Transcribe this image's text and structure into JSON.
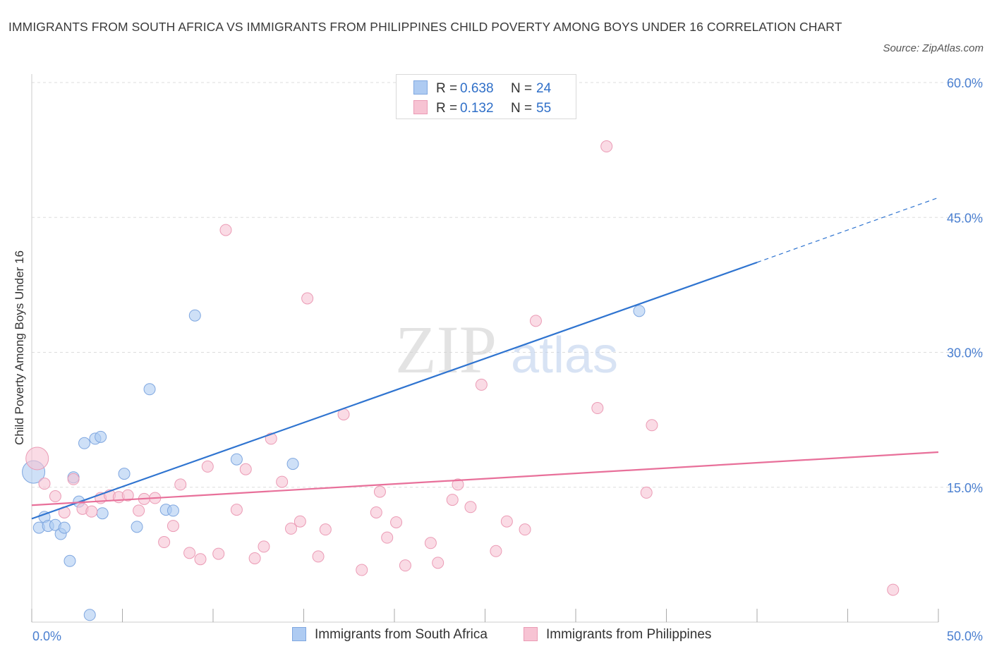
{
  "title": "IMMIGRANTS FROM SOUTH AFRICA VS IMMIGRANTS FROM PHILIPPINES CHILD POVERTY AMONG BOYS UNDER 16 CORRELATION CHART",
  "source": "Source: ZipAtlas.com",
  "watermark": {
    "zip": "ZIP",
    "atlas": "atlas"
  },
  "legend_top": [
    {
      "r_label": "R =",
      "r_value": "0.638",
      "n_label": "N =",
      "n_value": "24"
    },
    {
      "r_label": "R =",
      "r_value": "0.132",
      "n_label": "N =",
      "n_value": "55"
    }
  ],
  "legend_bottom": [
    "Immigrants from South Africa",
    "Immigrants from Philippines"
  ],
  "colors": {
    "blue_fill": "#aecbf2",
    "blue_stroke": "#7fa7e0",
    "blue_line": "#2f74d0",
    "pink_fill": "#f7c3d3",
    "pink_stroke": "#eb9bb5",
    "pink_line": "#e8709a",
    "tick_text": "#4a7fd0",
    "grid": "#dddddd"
  },
  "chart_data": {
    "type": "scatter",
    "title": "IMMIGRANTS FROM SOUTH AFRICA VS IMMIGRANTS FROM PHILIPPINES CHILD POVERTY AMONG BOYS UNDER 16 CORRELATION CHART",
    "xlabel": "",
    "ylabel": "Child Poverty Among Boys Under 16",
    "xlim": [
      0,
      50
    ],
    "ylim": [
      0,
      60
    ],
    "x_tick_labels": [
      "0.0%",
      "50.0%"
    ],
    "y_tick_values": [
      15,
      30,
      45,
      60
    ],
    "y_tick_labels": [
      "15.0%",
      "30.0%",
      "45.0%",
      "60.0%"
    ],
    "grid": true,
    "legend_position": "top-center",
    "series": [
      {
        "name": "Immigrants from South Africa",
        "color": "blue",
        "r": 0.638,
        "n": 24,
        "trend": {
          "x0": 0,
          "y0": 11.5,
          "x1": 40,
          "y1": 40.0,
          "dash_to_x": 50,
          "dash_to_y": 47.2
        },
        "points": [
          {
            "x": 0.1,
            "y": 16.7,
            "big": true
          },
          {
            "x": 0.4,
            "y": 10.5
          },
          {
            "x": 0.7,
            "y": 11.7
          },
          {
            "x": 0.9,
            "y": 10.7
          },
          {
            "x": 1.3,
            "y": 10.8
          },
          {
            "x": 1.6,
            "y": 9.8
          },
          {
            "x": 1.8,
            "y": 10.5
          },
          {
            "x": 2.1,
            "y": 6.8
          },
          {
            "x": 2.3,
            "y": 16.1
          },
          {
            "x": 2.6,
            "y": 13.4
          },
          {
            "x": 2.9,
            "y": 19.9
          },
          {
            "x": 3.5,
            "y": 20.4
          },
          {
            "x": 3.8,
            "y": 20.6
          },
          {
            "x": 3.9,
            "y": 12.1
          },
          {
            "x": 5.1,
            "y": 16.5
          },
          {
            "x": 5.8,
            "y": 10.6
          },
          {
            "x": 6.5,
            "y": 25.9
          },
          {
            "x": 7.4,
            "y": 12.5
          },
          {
            "x": 7.8,
            "y": 12.4
          },
          {
            "x": 9.0,
            "y": 34.1
          },
          {
            "x": 11.3,
            "y": 18.1
          },
          {
            "x": 14.4,
            "y": 17.6
          },
          {
            "x": 3.2,
            "y": 0.8
          },
          {
            "x": 33.5,
            "y": 34.6
          }
        ]
      },
      {
        "name": "Immigrants from Philippines",
        "color": "pink",
        "r": 0.132,
        "n": 55,
        "trend": {
          "x0": 0,
          "y0": 13.0,
          "x1": 50,
          "y1": 18.9
        },
        "points": [
          {
            "x": 0.3,
            "y": 18.2,
            "big": true
          },
          {
            "x": 0.7,
            "y": 15.4
          },
          {
            "x": 1.3,
            "y": 14.0
          },
          {
            "x": 1.8,
            "y": 12.2
          },
          {
            "x": 2.3,
            "y": 15.9
          },
          {
            "x": 2.8,
            "y": 12.6
          },
          {
            "x": 3.3,
            "y": 12.3
          },
          {
            "x": 3.8,
            "y": 13.8
          },
          {
            "x": 4.3,
            "y": 14.1
          },
          {
            "x": 4.8,
            "y": 13.9
          },
          {
            "x": 5.3,
            "y": 14.1
          },
          {
            "x": 5.9,
            "y": 12.4
          },
          {
            "x": 6.2,
            "y": 13.7
          },
          {
            "x": 6.8,
            "y": 13.8
          },
          {
            "x": 7.3,
            "y": 8.9
          },
          {
            "x": 7.8,
            "y": 10.7
          },
          {
            "x": 8.2,
            "y": 15.3
          },
          {
            "x": 8.7,
            "y": 7.7
          },
          {
            "x": 9.3,
            "y": 7.0
          },
          {
            "x": 9.7,
            "y": 17.3
          },
          {
            "x": 10.3,
            "y": 7.6
          },
          {
            "x": 10.7,
            "y": 43.6
          },
          {
            "x": 11.3,
            "y": 12.5
          },
          {
            "x": 11.8,
            "y": 17.0
          },
          {
            "x": 12.3,
            "y": 7.1
          },
          {
            "x": 12.8,
            "y": 8.4
          },
          {
            "x": 13.2,
            "y": 20.4
          },
          {
            "x": 13.8,
            "y": 15.6
          },
          {
            "x": 14.3,
            "y": 10.4
          },
          {
            "x": 14.8,
            "y": 11.2
          },
          {
            "x": 15.2,
            "y": 36.0
          },
          {
            "x": 15.8,
            "y": 7.3
          },
          {
            "x": 16.2,
            "y": 10.3
          },
          {
            "x": 17.2,
            "y": 23.1
          },
          {
            "x": 18.2,
            "y": 5.8
          },
          {
            "x": 19.0,
            "y": 12.2
          },
          {
            "x": 19.2,
            "y": 14.5
          },
          {
            "x": 19.6,
            "y": 9.4
          },
          {
            "x": 20.1,
            "y": 11.1
          },
          {
            "x": 20.6,
            "y": 6.3
          },
          {
            "x": 22.0,
            "y": 8.8
          },
          {
            "x": 22.4,
            "y": 6.6
          },
          {
            "x": 23.2,
            "y": 13.6
          },
          {
            "x": 23.5,
            "y": 15.3
          },
          {
            "x": 24.2,
            "y": 12.8
          },
          {
            "x": 24.8,
            "y": 26.4
          },
          {
            "x": 25.6,
            "y": 7.9
          },
          {
            "x": 26.2,
            "y": 11.2
          },
          {
            "x": 27.2,
            "y": 10.3
          },
          {
            "x": 27.8,
            "y": 33.5
          },
          {
            "x": 31.2,
            "y": 23.8
          },
          {
            "x": 31.7,
            "y": 52.9
          },
          {
            "x": 33.9,
            "y": 14.4
          },
          {
            "x": 34.2,
            "y": 21.9
          },
          {
            "x": 47.5,
            "y": 3.6
          }
        ]
      }
    ]
  }
}
